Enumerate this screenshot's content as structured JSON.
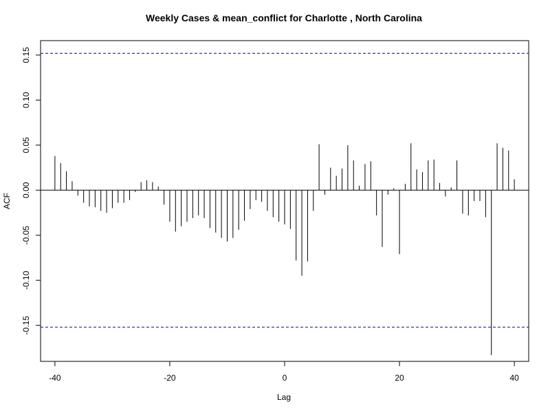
{
  "chart_data": {
    "type": "bar",
    "title": "Weekly Cases & mean_conflict for Charlotte , North Carolina",
    "xlabel": "Lag",
    "ylabel": "ACF",
    "xlim": [
      -42.5,
      42.5
    ],
    "ylim": [
      -0.19,
      0.166
    ],
    "x_ticks": [
      -40,
      -20,
      0,
      20,
      40
    ],
    "x_tick_labels": [
      "-40",
      "-20",
      "0",
      "20",
      "40"
    ],
    "y_ticks": [
      -0.15,
      -0.1,
      -0.05,
      0.0,
      0.05,
      0.1,
      0.15
    ],
    "y_tick_labels": [
      "-0.15",
      "-0.10",
      "-0.05",
      "0.00",
      "0.05",
      "0.10",
      "0.15"
    ],
    "confidence_bound": 0.152,
    "confidence_color": "#0000cc",
    "bar_color": "#000000",
    "lags": [
      -40,
      -39,
      -38,
      -37,
      -36,
      -35,
      -34,
      -33,
      -32,
      -31,
      -30,
      -29,
      -28,
      -27,
      -26,
      -25,
      -24,
      -23,
      -22,
      -21,
      -20,
      -19,
      -18,
      -17,
      -16,
      -15,
      -14,
      -13,
      -12,
      -11,
      -10,
      -9,
      -8,
      -7,
      -6,
      -5,
      -4,
      -3,
      -2,
      -1,
      0,
      1,
      2,
      3,
      4,
      5,
      6,
      7,
      8,
      9,
      10,
      11,
      12,
      13,
      14,
      15,
      16,
      17,
      18,
      19,
      20,
      21,
      22,
      23,
      24,
      25,
      26,
      27,
      28,
      29,
      30,
      31,
      32,
      33,
      34,
      35,
      36,
      37,
      38,
      39,
      40
    ],
    "values": [
      0.038,
      0.03,
      0.021,
      0.01,
      -0.006,
      -0.014,
      -0.018,
      -0.019,
      -0.023,
      -0.025,
      -0.02,
      -0.014,
      -0.014,
      -0.011,
      -0.002,
      0.009,
      0.011,
      0.009,
      0.004,
      -0.016,
      -0.035,
      -0.046,
      -0.04,
      -0.035,
      -0.031,
      -0.028,
      -0.031,
      -0.042,
      -0.047,
      -0.053,
      -0.057,
      -0.053,
      -0.044,
      -0.034,
      -0.021,
      -0.011,
      -0.013,
      -0.023,
      -0.03,
      -0.035,
      -0.038,
      -0.043,
      -0.078,
      -0.095,
      -0.079,
      -0.023,
      0.051,
      -0.005,
      0.025,
      0.016,
      0.024,
      0.05,
      0.033,
      0.005,
      0.029,
      0.032,
      -0.028,
      -0.063,
      -0.005,
      0.002,
      -0.071,
      0.007,
      0.052,
      0.023,
      0.02,
      0.033,
      0.034,
      0.008,
      -0.007,
      0.003,
      0.033,
      -0.026,
      -0.028,
      -0.012,
      -0.012,
      -0.03,
      -0.183,
      0.052,
      0.047,
      0.044,
      0.012
    ]
  }
}
